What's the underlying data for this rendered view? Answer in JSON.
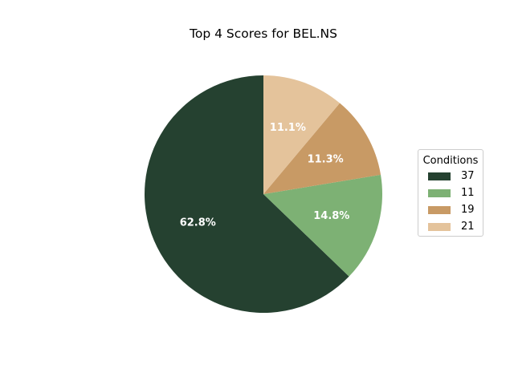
{
  "chart_data": {
    "type": "pie",
    "title": "Top 4 Scores for BEL.NS",
    "legend_title": "Conditions",
    "legend_position": "right",
    "start_angle_deg": 90,
    "direction": "counterclockwise",
    "slices": [
      {
        "label": "37",
        "value": 62.8,
        "pct_label": "62.8%",
        "color": "#254130"
      },
      {
        "label": "11",
        "value": 14.8,
        "pct_label": "14.8%",
        "color": "#7db174"
      },
      {
        "label": "19",
        "value": 11.3,
        "pct_label": "11.3%",
        "color": "#c89a65"
      },
      {
        "label": "21",
        "value": 11.1,
        "pct_label": "11.1%",
        "color": "#e4c39b"
      }
    ]
  }
}
